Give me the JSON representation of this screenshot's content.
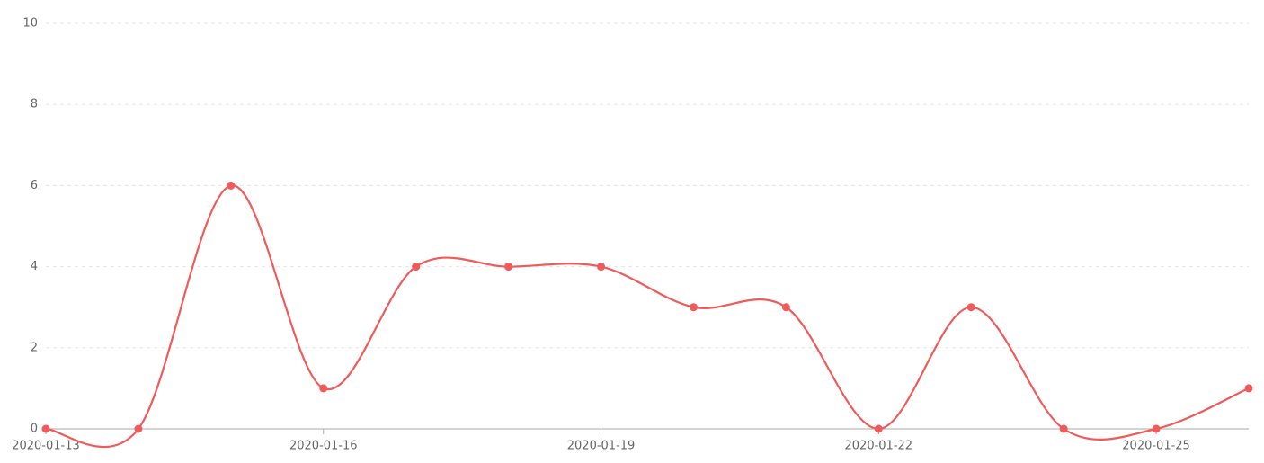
{
  "chart_data": {
    "type": "line",
    "x": [
      "2020-01-13",
      "2020-01-14",
      "2020-01-15",
      "2020-01-16",
      "2020-01-17",
      "2020-01-18",
      "2020-01-19",
      "2020-01-20",
      "2020-01-21",
      "2020-01-22",
      "2020-01-23",
      "2020-01-24",
      "2020-01-25",
      "2020-01-26"
    ],
    "values": [
      0,
      0,
      6,
      1,
      4,
      4,
      4,
      3,
      3,
      0,
      3,
      0,
      0,
      1
    ],
    "color": "#f05a5a",
    "xlim": [
      "2020-01-13",
      "2020-01-26"
    ],
    "xticks": [
      "2020-01-13",
      "2020-01-16",
      "2020-01-19",
      "2020-01-22",
      "2020-01-25"
    ],
    "ylim": [
      0,
      10
    ],
    "yticks": [
      0,
      2,
      4,
      6,
      8,
      10
    ],
    "grid": true,
    "smooth": true
  }
}
